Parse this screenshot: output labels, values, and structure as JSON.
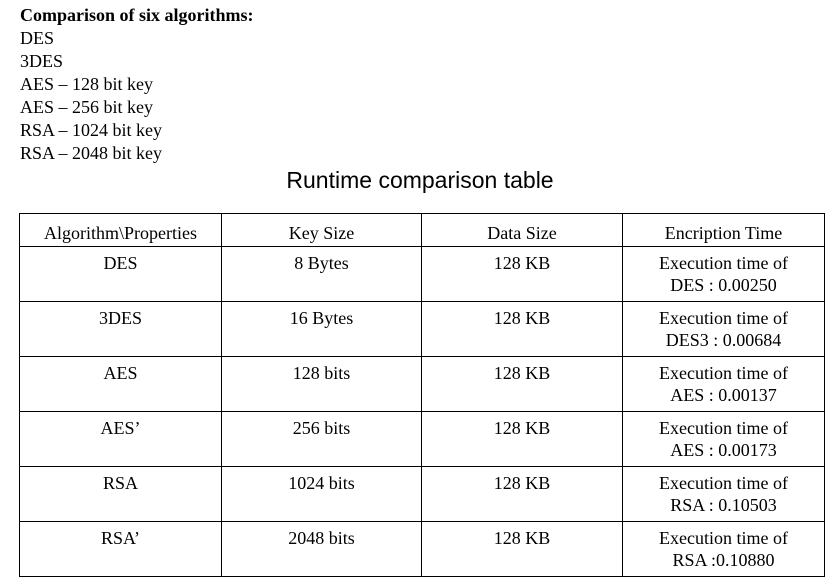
{
  "intro": {
    "heading": "Comparison of six algorithms:",
    "items": [
      "DES",
      "3DES",
      "AES – 128 bit key",
      "AES – 256 bit key",
      "RSA – 1024 bit key",
      "RSA – 2048 bit key"
    ]
  },
  "table": {
    "title": "Runtime comparison table",
    "headers": [
      "Algorithm\\Properties",
      "Key Size",
      "Data Size",
      "Encription Time"
    ],
    "rows": [
      {
        "algorithm": "DES",
        "key_size": "8 Bytes",
        "data_size": "128 KB",
        "time_line1": "Execution time of",
        "time_line2": "DES : 0.00250"
      },
      {
        "algorithm": "3DES",
        "key_size": "16 Bytes",
        "data_size": "128 KB",
        "time_line1": "Execution time of",
        "time_line2": "DES3 : 0.00684"
      },
      {
        "algorithm": "AES",
        "key_size": "128 bits",
        "data_size": "128 KB",
        "time_line1": "Execution time of",
        "time_line2": "AES : 0.00137"
      },
      {
        "algorithm": "AES’",
        "key_size": "256 bits",
        "data_size": "128 KB",
        "time_line1": "Execution time of",
        "time_line2": "AES : 0.00173"
      },
      {
        "algorithm": "RSA",
        "key_size": "1024 bits",
        "data_size": "128 KB",
        "time_line1": "Execution time of",
        "time_line2": "RSA : 0.10503"
      },
      {
        "algorithm": "RSA’",
        "key_size": "2048 bits",
        "data_size": "128 KB",
        "time_line1": "Execution time of",
        "time_line2": "RSA :0.10880"
      }
    ]
  }
}
